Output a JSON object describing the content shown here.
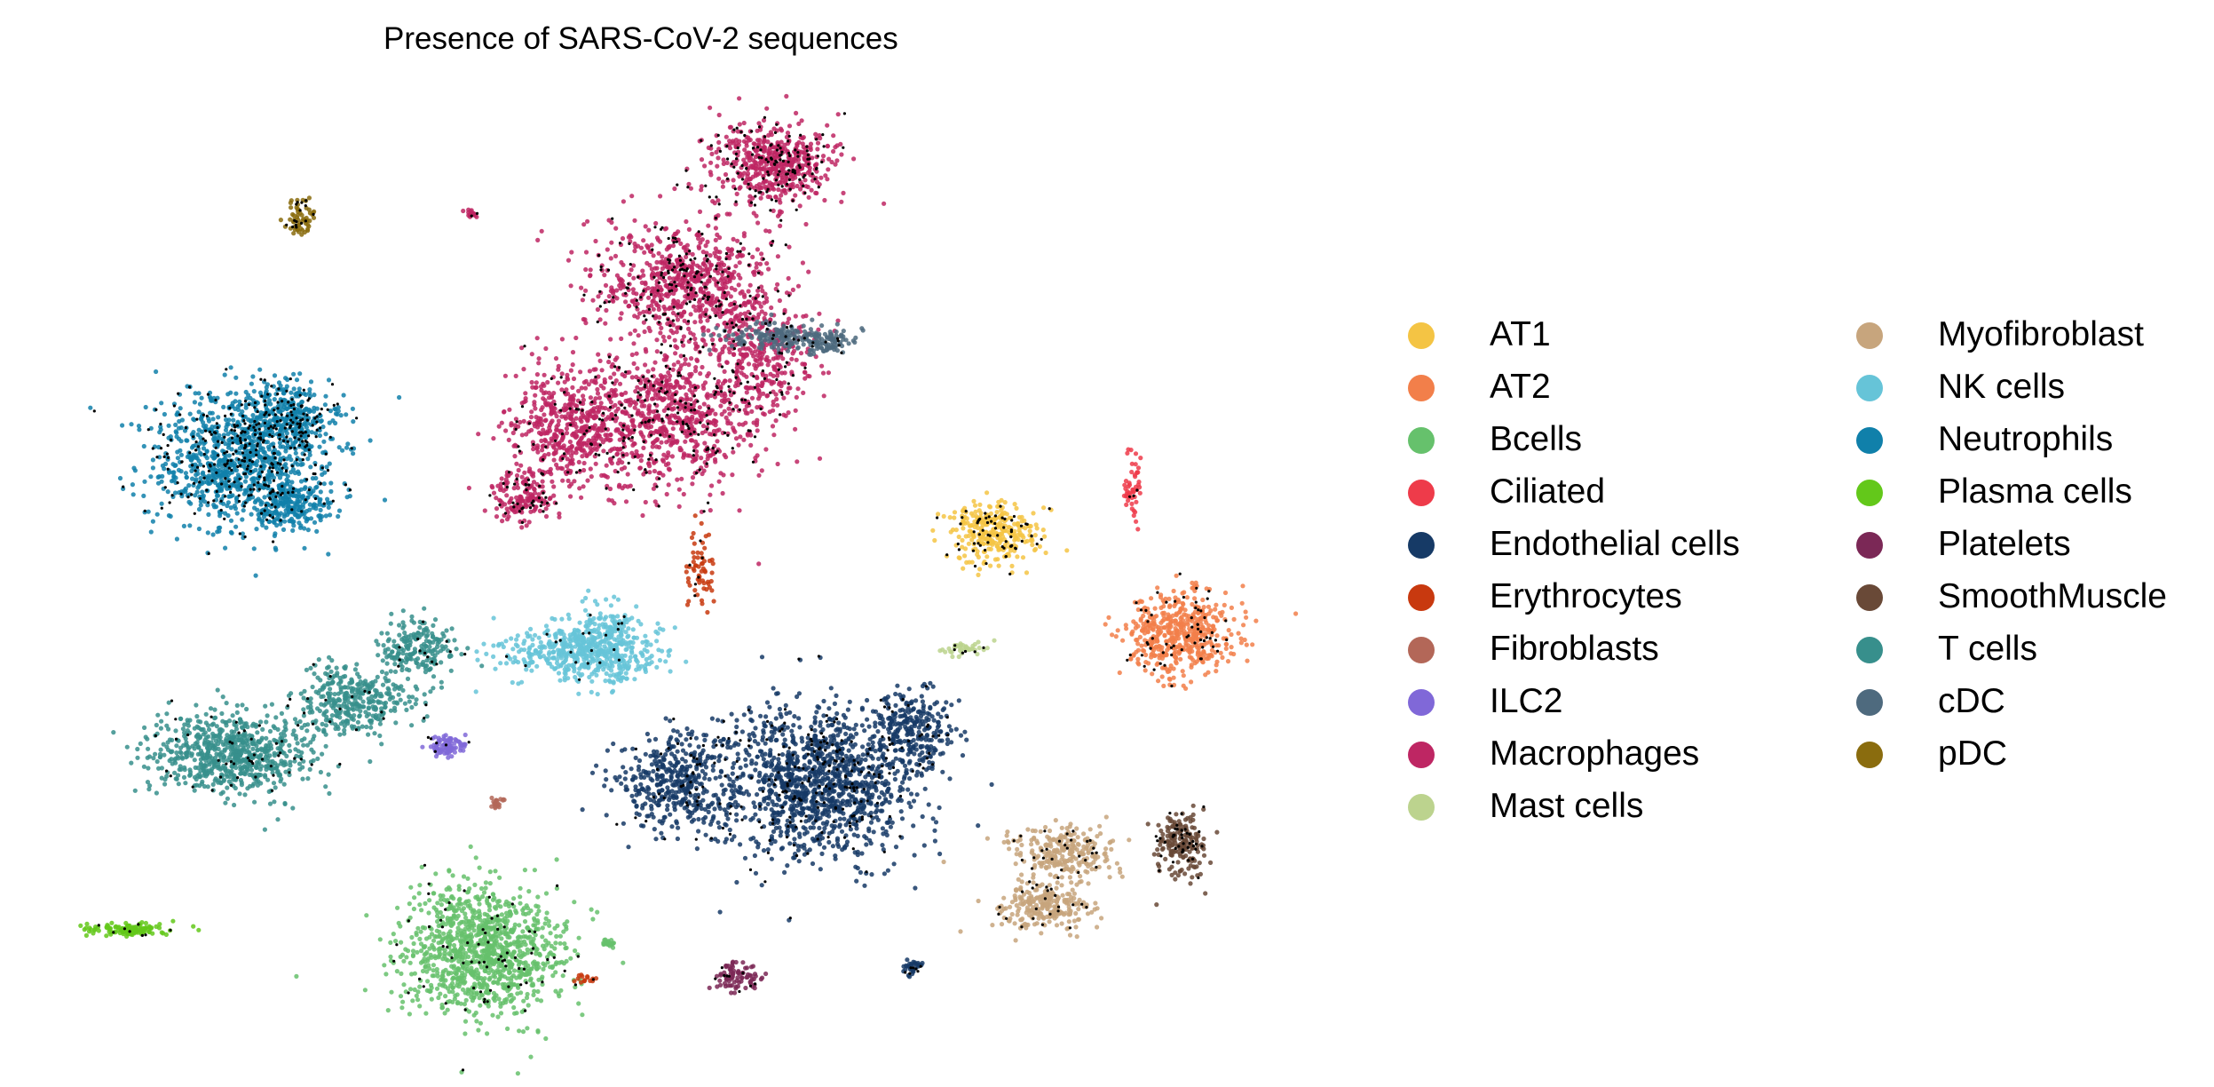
{
  "chart_data": {
    "type": "scatter",
    "title": "Presence of SARS-CoV-2 sequences",
    "xlabel": "",
    "ylabel": "",
    "axes_visible": false,
    "grid": false,
    "legend_placement": "right, two columns",
    "highlight": {
      "description": "cells with SARS-CoV-2 sequences overlaid as black dots",
      "color": "#000000"
    },
    "categories": [
      {
        "name": "AT1",
        "color": "#F4C444"
      },
      {
        "name": "AT2",
        "color": "#F27F4A"
      },
      {
        "name": "Bcells",
        "color": "#66C16C"
      },
      {
        "name": "Ciliated",
        "color": "#EE3B4A"
      },
      {
        "name": "Endothelial cells",
        "color": "#163A66"
      },
      {
        "name": "Erythrocytes",
        "color": "#C8390F"
      },
      {
        "name": "Fibroblasts",
        "color": "#B36758"
      },
      {
        "name": "ILC2",
        "color": "#8068D8"
      },
      {
        "name": "Macrophages",
        "color": "#BE2663"
      },
      {
        "name": "Mast cells",
        "color": "#BCD38E"
      },
      {
        "name": "Myofibroblast",
        "color": "#C7A57D"
      },
      {
        "name": "NK cells",
        "color": "#66C4D8"
      },
      {
        "name": "Neutrophils",
        "color": "#1080AA"
      },
      {
        "name": "Plasma cells",
        "color": "#63C81A"
      },
      {
        "name": "Platelets",
        "color": "#7B2856"
      },
      {
        "name": "SmoothMuscle",
        "color": "#694937"
      },
      {
        "name": "T cells",
        "color": "#378F8C"
      },
      {
        "name": "cDC",
        "color": "#4E6A7E"
      },
      {
        "name": "pDC",
        "color": "#8A6C0E"
      }
    ]
  }
}
